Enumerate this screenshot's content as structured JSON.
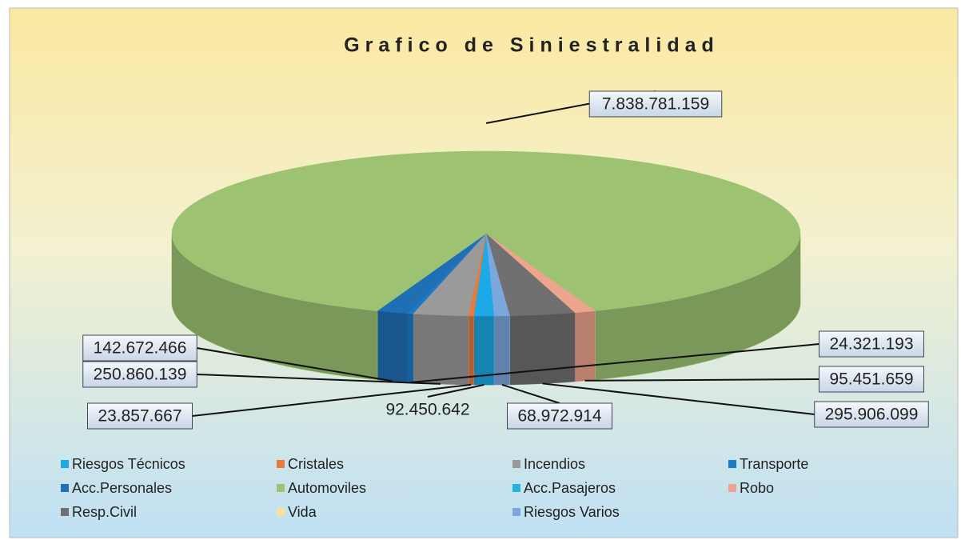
{
  "chart_data": {
    "type": "pie3d",
    "title": "Grafico de Siniestralidad",
    "categories": [
      "Riesgos Técnicos",
      "Cristales",
      "Incendios",
      "Transporte",
      "Acc.Personales",
      "Automoviles",
      "Acc.Pasajeros",
      "Robo",
      "Resp.Civil",
      "Vida",
      "Riesgos Varios"
    ],
    "values": [
      92450642,
      23857667,
      250860139,
      24321193,
      142672466,
      7838781159,
      0,
      95451659,
      295906099,
      0,
      68972914
    ],
    "value_labels": [
      "92.450.642",
      "23.857.667",
      "250.860.139",
      "24.321.193",
      "142.672.466",
      "7.838.781.159",
      null,
      "95.451.659",
      "295.906.099",
      null,
      "68.972.914"
    ],
    "colors": [
      "#1ca9e6",
      "#e87a3a",
      "#9a9a9a",
      "#1a7ac8",
      "#1f6fb5",
      "#9dc372",
      "#22b5e0",
      "#eea58d",
      "#707070",
      "#f6e39a",
      "#7ba7dd"
    ],
    "legend": "bottom"
  }
}
